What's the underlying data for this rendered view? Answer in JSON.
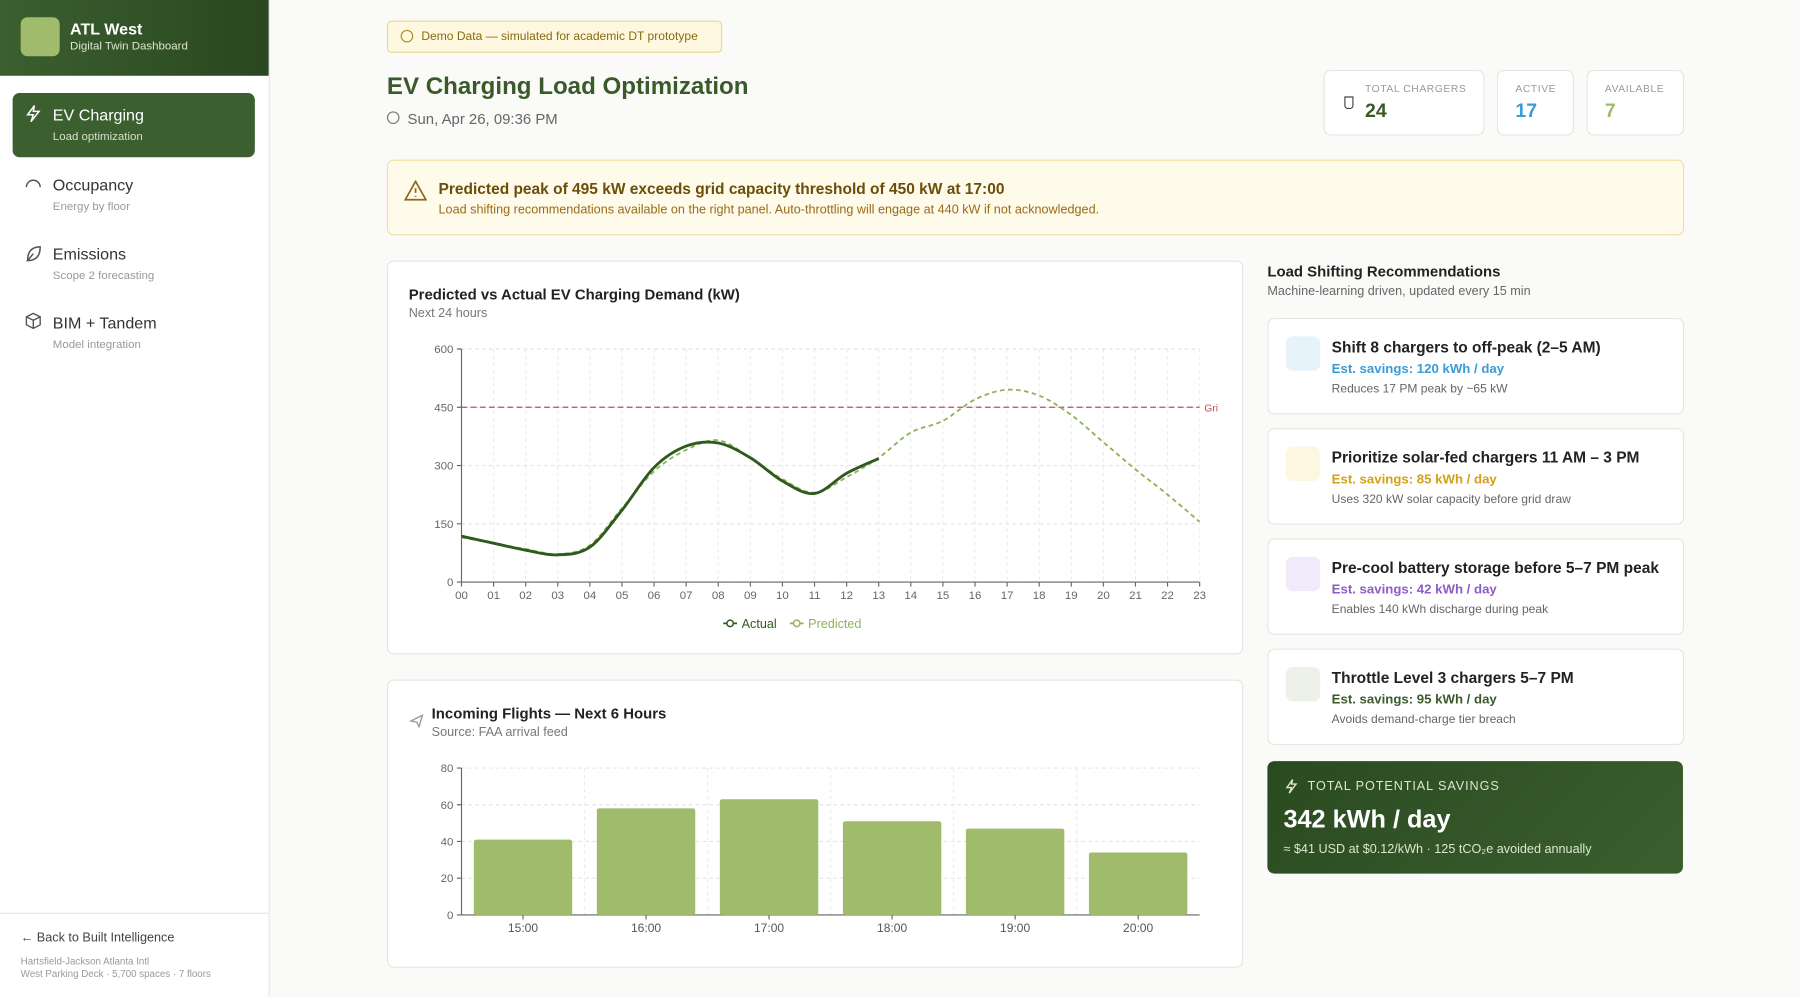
{
  "sidebar": {
    "brand": {
      "title": "ATL West",
      "subtitle": "Digital Twin Dashboard"
    },
    "nav": [
      {
        "label": "EV Charging",
        "sublabel": "Load optimization"
      },
      {
        "label": "Occupancy",
        "sublabel": "Energy by floor"
      },
      {
        "label": "Emissions",
        "sublabel": "Scope 2 forecasting"
      },
      {
        "label": "BIM + Tandem",
        "sublabel": "Model integration"
      }
    ],
    "back": "Back to Built Intelligence",
    "footer": [
      "Hartsfield-Jackson Atlanta Intl",
      "West Parking Deck · 5,700 spaces · 7 floors"
    ]
  },
  "header": {
    "badge": "Demo Data — simulated for academic DT prototype",
    "title": "EV Charging Load Optimization",
    "date": "Sun, Apr 26, 09:36 PM"
  },
  "stats": [
    {
      "label": "TOTAL CHARGERS",
      "value": 24
    },
    {
      "label": "ACTIVE",
      "value": 17
    },
    {
      "label": "AVAILABLE",
      "value": 7
    }
  ],
  "alert": {
    "title": "Predicted peak of 495 kW exceeds grid capacity threshold of 450 kW at 17:00",
    "text": "Load shifting recommendations available on the right panel. Auto-throttling will engage at 440 kW if not acknowledged."
  },
  "chart_data": [
    {
      "type": "line",
      "title": "Predicted vs Actual EV Charging Demand (kW)",
      "subtitle": "Next 24 hours",
      "categories": [
        "00",
        "01",
        "02",
        "03",
        "04",
        "05",
        "06",
        "07",
        "08",
        "09",
        "10",
        "11",
        "12",
        "13",
        "14",
        "15",
        "16",
        "17",
        "18",
        "19",
        "20",
        "21",
        "22",
        "23"
      ],
      "series": [
        {
          "name": "Actual",
          "color": "#2f5a1e",
          "values": [
            118,
            100,
            82,
            70,
            90,
            185,
            295,
            350,
            358,
            320,
            260,
            228,
            280,
            318,
            null,
            null,
            null,
            null,
            null,
            null,
            null,
            null,
            null,
            null
          ]
        },
        {
          "name": "Predicted",
          "color": "#8fb35a",
          "values": [
            115,
            100,
            85,
            72,
            95,
            190,
            285,
            340,
            365,
            320,
            265,
            230,
            270,
            320,
            385,
            415,
            470,
            495,
            480,
            430,
            360,
            290,
            225,
            155
          ]
        }
      ],
      "ylim": [
        0,
        600
      ],
      "yticks": [
        0,
        150,
        300,
        450,
        600
      ],
      "grid": true,
      "threshold": {
        "value": 450,
        "label": "Gri",
        "color": "#c0504d"
      }
    },
    {
      "type": "bar",
      "title": "Incoming Flights — Next 6 Hours",
      "subtitle": "Source: FAA arrival feed",
      "categories": [
        "15:00",
        "16:00",
        "17:00",
        "18:00",
        "19:00",
        "20:00"
      ],
      "values": [
        41,
        58,
        63,
        51,
        47,
        34
      ],
      "color": "#9fbb6b",
      "ylim": [
        0,
        80
      ],
      "yticks": [
        0,
        20,
        40,
        60,
        80
      ],
      "grid": true
    }
  ],
  "recommendations": {
    "title": "Load Shifting Recommendations",
    "subtitle": "Machine-learning driven, updated every 15 min",
    "items": [
      {
        "title": "Shift 8 chargers to off-peak (2–5 AM)",
        "savings": "Est. savings: 120 kWh / day",
        "note": "Reduces 17 PM peak by ~65 kW"
      },
      {
        "title": "Prioritize solar-fed chargers 11 AM – 3 PM",
        "savings": "Est. savings: 85 kWh / day",
        "note": "Uses 320 kW solar capacity before grid draw"
      },
      {
        "title": "Pre-cool battery storage before 5–7 PM peak",
        "savings": "Est. savings: 42 kWh / day",
        "note": "Enables 140 kWh discharge during peak"
      },
      {
        "title": "Throttle Level 3 chargers 5–7 PM",
        "savings": "Est. savings: 95 kWh / day",
        "note": "Avoids demand-charge tier breach"
      }
    ]
  },
  "savings": {
    "label": "TOTAL POTENTIAL SAVINGS",
    "value": "342 kWh / day",
    "note": "≈ $41 USD at $0.12/kWh · 125 tCO₂e avoided annually"
  }
}
